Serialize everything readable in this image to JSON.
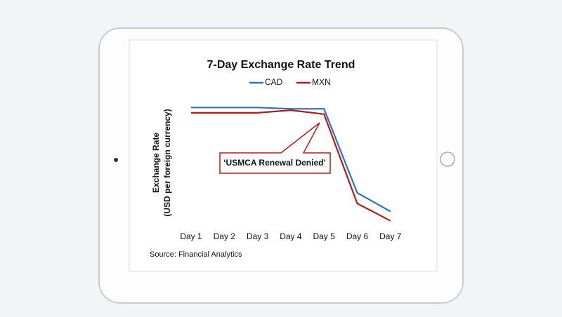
{
  "chart_data": {
    "type": "line",
    "title": "7-Day Exchange Rate Trend",
    "ylabel": "Exchange Rate",
    "ylabel_sub": "(USD per foreign currency)",
    "source": "Source: Financial Analytics",
    "annotation": "‘USMCA Renewal Denied’",
    "categories": [
      "Day 1",
      "Day 2",
      "Day 3",
      "Day 4",
      "Day 5",
      "Day 6",
      "Day 7"
    ],
    "series": [
      {
        "name": "CAD",
        "color": "#2e75b6",
        "values": [
          93,
          93,
          93,
          92,
          92,
          29,
          15
        ]
      },
      {
        "name": "MXN",
        "color": "#b31b1b",
        "values": [
          89,
          89,
          89,
          91,
          88,
          21,
          8
        ]
      }
    ],
    "ylim": [
      0,
      100
    ]
  }
}
